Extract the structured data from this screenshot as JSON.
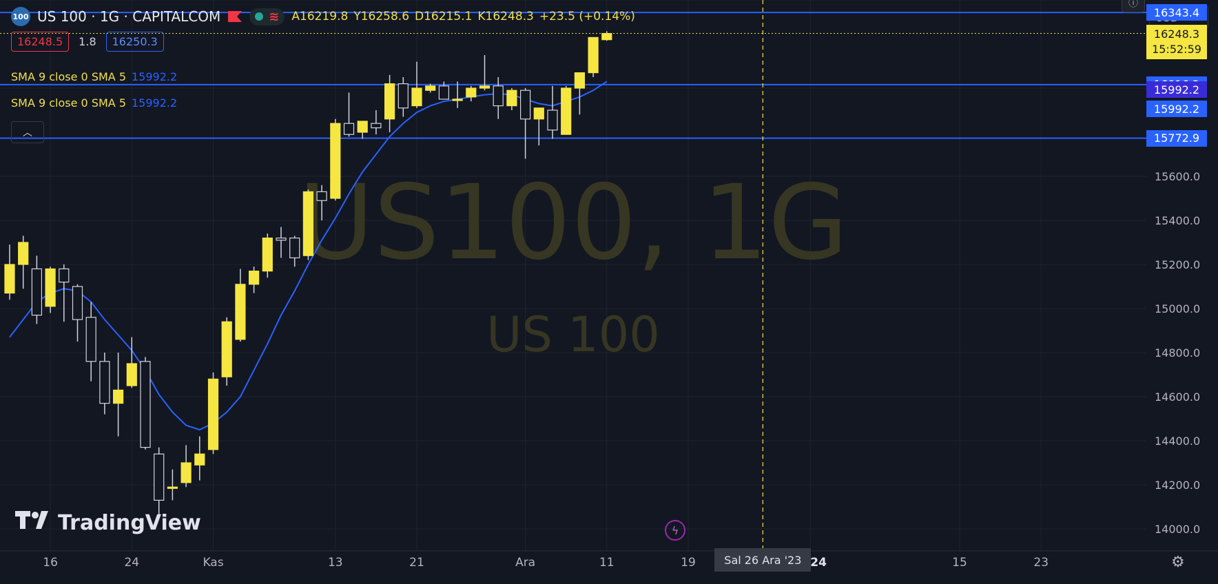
{
  "header": {
    "logo_text": "100",
    "title": "US 100 · 1G · CAPITALCOM",
    "ohlc": [
      {
        "k": "A",
        "v": "16219.8"
      },
      {
        "k": "Y",
        "v": "16258.6"
      },
      {
        "k": "D",
        "v": "16215.1"
      },
      {
        "k": "K",
        "v": "16248.3"
      },
      {
        "k": "",
        "v": "+23.5 (+0.14%)"
      }
    ]
  },
  "quote": {
    "bid": "16248.5",
    "spread": "1.8",
    "ask": "16250.3"
  },
  "indicators": [
    {
      "label": "SMA 9 close 0 SMA 5",
      "value": "15992.2"
    },
    {
      "label": "SMA 9 close 0 SMA 5",
      "value": "15992.2"
    }
  ],
  "currency": {
    "label": "USD"
  },
  "watermark": {
    "main": "US100, 1G",
    "sub": "US 100"
  },
  "branding": {
    "logo_text": "TradingView"
  },
  "tags": {
    "current_price": "16248.3",
    "countdown": "15:52:59",
    "crosshair_date": "Sal 26 Ara '23"
  },
  "colors": {
    "up": "#f5e642",
    "down": "#131722",
    "sma": "#2962ff",
    "hline": "#2962ff",
    "bg": "#131722"
  },
  "chart_data": {
    "type": "candlestick",
    "y_axis": {
      "range": [
        13900,
        16400
      ],
      "ticks": [
        14000,
        14200,
        14400,
        14600,
        14800,
        15000,
        15200,
        15400,
        15600
      ]
    },
    "x_axis": {
      "labels": [
        {
          "label": "16",
          "bar": 3
        },
        {
          "label": "24",
          "bar": 9
        },
        {
          "label": "Kas",
          "bar": 15
        },
        {
          "label": "13",
          "bar": 24
        },
        {
          "label": "21",
          "bar": 30
        },
        {
          "label": "Ara",
          "bar": 38
        },
        {
          "label": "11",
          "bar": 44
        },
        {
          "label": "19",
          "bar": 50
        },
        {
          "label": "2024",
          "bar": 59,
          "bold": true
        },
        {
          "label": "15",
          "bar": 70
        },
        {
          "label": "23",
          "bar": 76
        }
      ]
    },
    "crosshair_bar": 55.5,
    "horizontal_lines": [
      {
        "price": 16343.4,
        "label": "16343.4"
      },
      {
        "price": 16016.2,
        "label": "16016.2"
      },
      {
        "price": 15772.9,
        "label": "15772.9"
      }
    ],
    "sma_labels": [
      {
        "price": 15992.2,
        "label": "15992.2"
      },
      {
        "price": 15905.0,
        "label": "15992.2"
      }
    ],
    "candles": [
      {
        "o": 15070,
        "h": 15290,
        "l": 15040,
        "c": 15200
      },
      {
        "o": 15200,
        "h": 15330,
        "l": 15090,
        "c": 15300
      },
      {
        "o": 15180,
        "h": 15240,
        "l": 14930,
        "c": 14970
      },
      {
        "o": 15010,
        "h": 15190,
        "l": 14980,
        "c": 15180
      },
      {
        "o": 15180,
        "h": 15200,
        "l": 14940,
        "c": 15120
      },
      {
        "o": 15100,
        "h": 15110,
        "l": 14850,
        "c": 14950
      },
      {
        "o": 14960,
        "h": 15030,
        "l": 14670,
        "c": 14760
      },
      {
        "o": 14760,
        "h": 14800,
        "l": 14520,
        "c": 14570
      },
      {
        "o": 14570,
        "h": 14800,
        "l": 14420,
        "c": 14630
      },
      {
        "o": 14650,
        "h": 14870,
        "l": 14640,
        "c": 14750
      },
      {
        "o": 14760,
        "h": 14780,
        "l": 14360,
        "c": 14370
      },
      {
        "o": 14340,
        "h": 14370,
        "l": 14050,
        "c": 14130
      },
      {
        "o": 14190,
        "h": 14270,
        "l": 14130,
        "c": 14190
      },
      {
        "o": 14210,
        "h": 14380,
        "l": 14190,
        "c": 14300
      },
      {
        "o": 14290,
        "h": 14420,
        "l": 14220,
        "c": 14340
      },
      {
        "o": 14360,
        "h": 14710,
        "l": 14340,
        "c": 14680
      },
      {
        "o": 14690,
        "h": 14960,
        "l": 14650,
        "c": 14940
      },
      {
        "o": 14860,
        "h": 15180,
        "l": 14850,
        "c": 15110
      },
      {
        "o": 15110,
        "h": 15190,
        "l": 15070,
        "c": 15170
      },
      {
        "o": 15170,
        "h": 15340,
        "l": 15140,
        "c": 15320
      },
      {
        "o": 15320,
        "h": 15370,
        "l": 15230,
        "c": 15310
      },
      {
        "o": 15320,
        "h": 15330,
        "l": 15190,
        "c": 15230
      },
      {
        "o": 15240,
        "h": 15540,
        "l": 15220,
        "c": 15530
      },
      {
        "o": 15530,
        "h": 15560,
        "l": 15400,
        "c": 15490
      },
      {
        "o": 15500,
        "h": 15860,
        "l": 15490,
        "c": 15840
      },
      {
        "o": 15840,
        "h": 15980,
        "l": 15780,
        "c": 15790
      },
      {
        "o": 15800,
        "h": 15850,
        "l": 15770,
        "c": 15850
      },
      {
        "o": 15840,
        "h": 15900,
        "l": 15790,
        "c": 15820
      },
      {
        "o": 15860,
        "h": 16060,
        "l": 15800,
        "c": 16020
      },
      {
        "o": 16020,
        "h": 16050,
        "l": 15870,
        "c": 15910
      },
      {
        "o": 15920,
        "h": 16120,
        "l": 15910,
        "c": 16000
      },
      {
        "o": 15990,
        "h": 16020,
        "l": 15980,
        "c": 16010
      },
      {
        "o": 16010,
        "h": 16030,
        "l": 15950,
        "c": 15950
      },
      {
        "o": 15950,
        "h": 16030,
        "l": 15910,
        "c": 15950
      },
      {
        "o": 15960,
        "h": 16010,
        "l": 15940,
        "c": 16000
      },
      {
        "o": 16000,
        "h": 16150,
        "l": 15990,
        "c": 16010
      },
      {
        "o": 16010,
        "h": 16050,
        "l": 15860,
        "c": 15920
      },
      {
        "o": 15920,
        "h": 16000,
        "l": 15900,
        "c": 15990
      },
      {
        "o": 15990,
        "h": 16000,
        "l": 15680,
        "c": 15860
      },
      {
        "o": 15860,
        "h": 15900,
        "l": 15740,
        "c": 15910
      },
      {
        "o": 15900,
        "h": 16010,
        "l": 15770,
        "c": 15810
      },
      {
        "o": 15790,
        "h": 16010,
        "l": 15790,
        "c": 16000
      },
      {
        "o": 16000,
        "h": 16070,
        "l": 15880,
        "c": 16070
      },
      {
        "o": 16070,
        "h": 16230,
        "l": 16050,
        "c": 16230
      },
      {
        "o": 16219.8,
        "h": 16258.6,
        "l": 16215.1,
        "c": 16248.3
      }
    ],
    "sma": [
      14870,
      14950,
      15030,
      15070,
      15090,
      15080,
      15030,
      14950,
      14880,
      14810,
      14720,
      14610,
      14530,
      14470,
      14450,
      14480,
      14530,
      14600,
      14720,
      14840,
      14970,
      15080,
      15200,
      15310,
      15410,
      15520,
      15620,
      15700,
      15780,
      15840,
      15890,
      15920,
      15940,
      15950,
      15960,
      15970,
      15975,
      15970,
      15950,
      15930,
      15920,
      15940,
      15960,
      15990,
      16030
    ]
  }
}
